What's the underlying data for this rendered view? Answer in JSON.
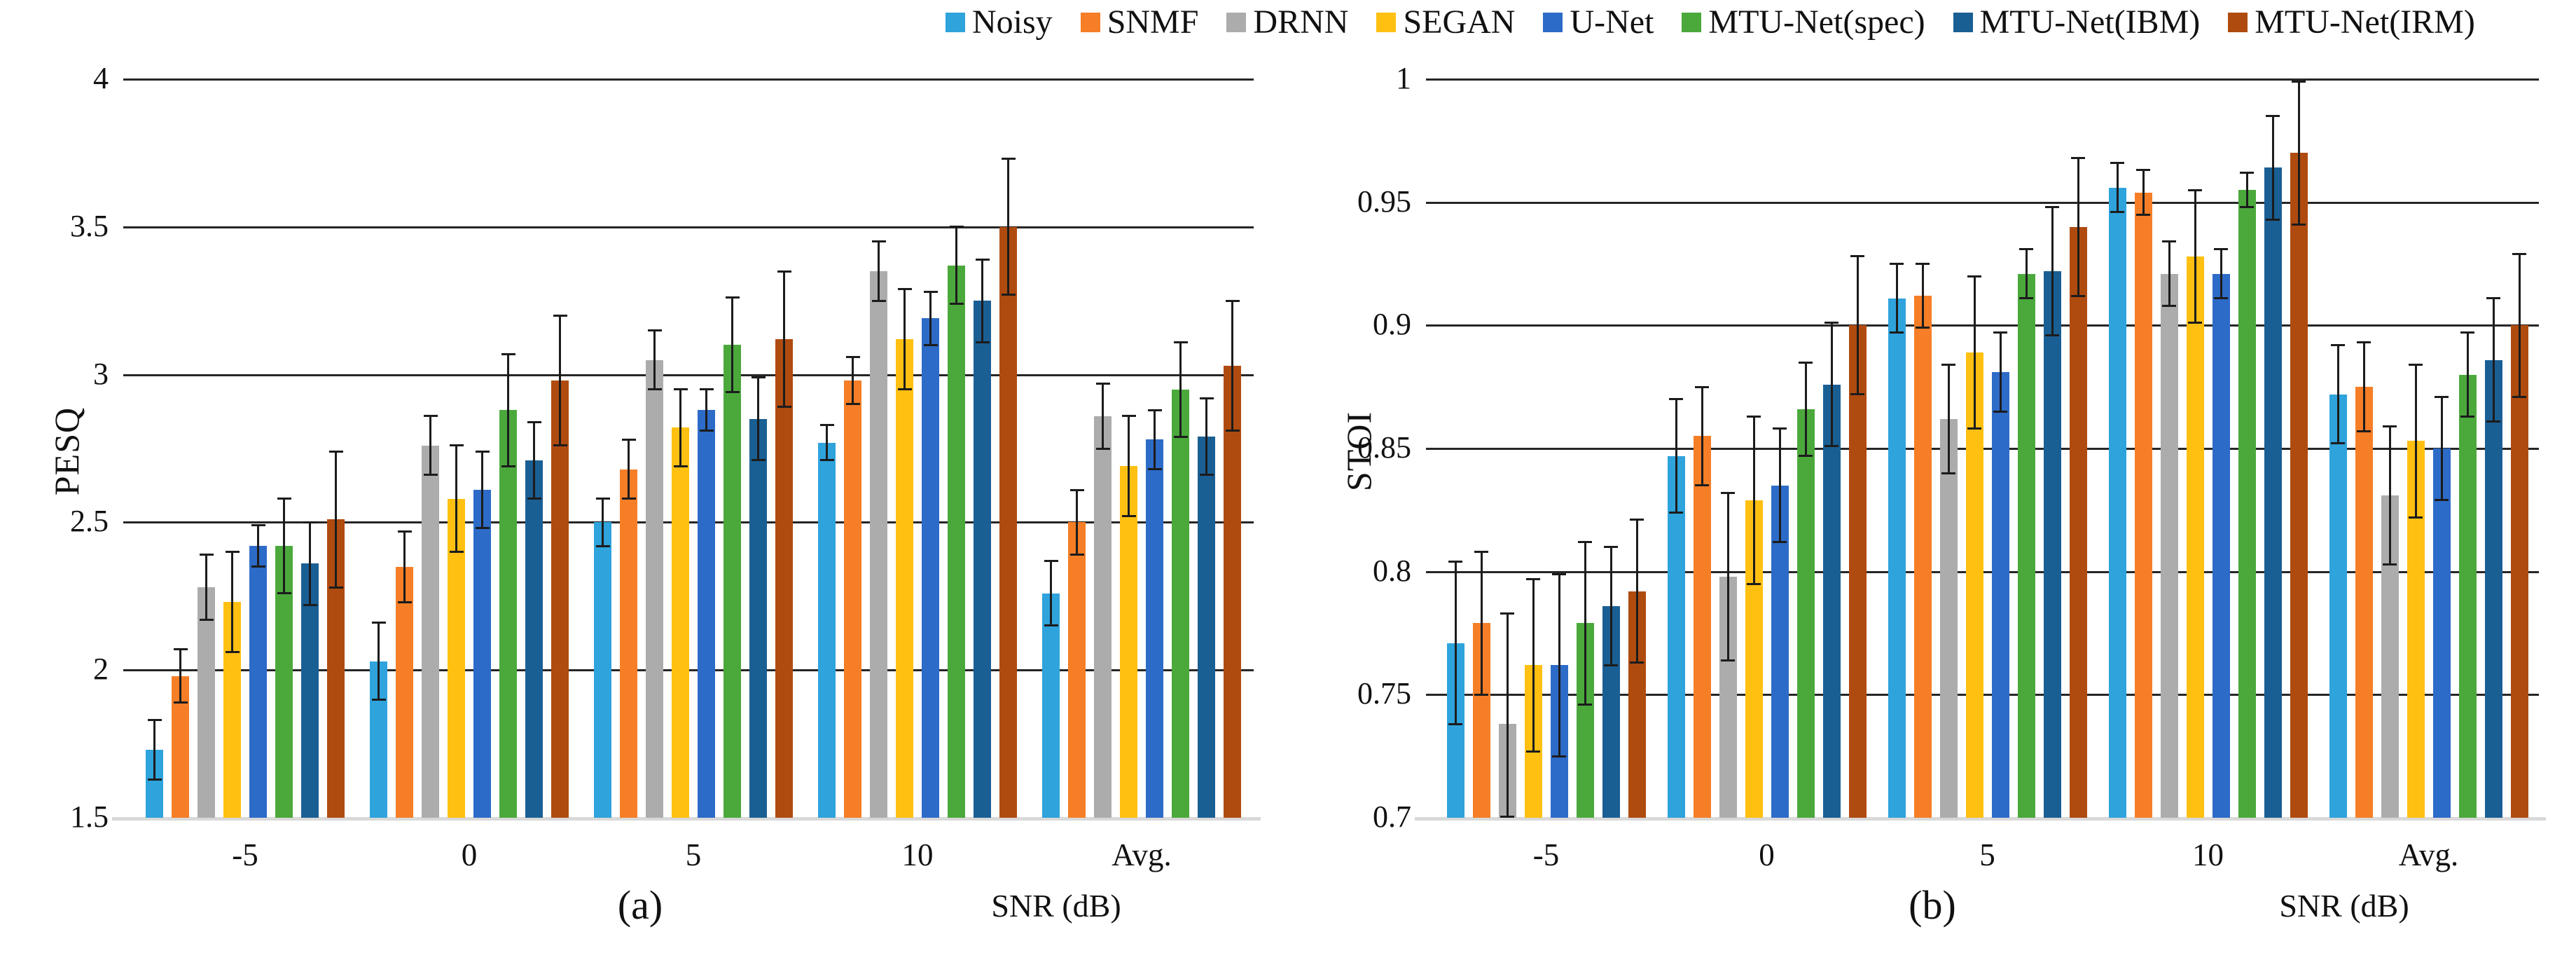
{
  "legend": {
    "items": [
      {
        "label": "Noisy",
        "color": "#2FA3DC"
      },
      {
        "label": "SNMF",
        "color": "#F57E27"
      },
      {
        "label": "DRNN",
        "color": "#ACACAC"
      },
      {
        "label": "SEGAN",
        "color": "#FFC012"
      },
      {
        "label": "U-Net",
        "color": "#2D6BC8"
      },
      {
        "label": "MTU-Net(spec)",
        "color": "#4BA93C"
      },
      {
        "label": "MTU-Net(IBM)",
        "color": "#1A5F94"
      },
      {
        "label": "MTU-Net(IRM)",
        "color": "#B04B10"
      }
    ]
  },
  "chart_data": [
    {
      "type": "bar",
      "panel": "a",
      "sublabel": "(a)",
      "ylabel": "PESQ",
      "xlabel": "SNR (dB)",
      "categories": [
        "-5",
        "0",
        "5",
        "10",
        "Avg."
      ],
      "ylim": [
        1.5,
        4
      ],
      "grid": true,
      "legend_position": "top",
      "yticks": [
        {
          "v": 4,
          "label": "4"
        },
        {
          "v": 3.5,
          "label": "3.5"
        },
        {
          "v": 3,
          "label": "3"
        },
        {
          "v": 2.5,
          "label": "2.5"
        },
        {
          "v": 2,
          "label": "2"
        },
        {
          "v": 1.5,
          "label": "1.5"
        }
      ],
      "series": [
        {
          "name": "Noisy",
          "color": "#2FA3DC",
          "values": [
            1.73,
            2.03,
            2.5,
            2.77,
            2.26
          ],
          "errors": [
            0.1,
            0.13,
            0.08,
            0.06,
            0.11
          ]
        },
        {
          "name": "SNMF",
          "color": "#F57E27",
          "values": [
            1.98,
            2.35,
            2.68,
            2.98,
            2.5
          ],
          "errors": [
            0.09,
            0.12,
            0.1,
            0.08,
            0.11
          ]
        },
        {
          "name": "DRNN",
          "color": "#ACACAC",
          "values": [
            2.28,
            2.76,
            3.05,
            3.35,
            2.86
          ],
          "errors": [
            0.11,
            0.1,
            0.1,
            0.1,
            0.11
          ]
        },
        {
          "name": "SEGAN",
          "color": "#FFC012",
          "values": [
            2.23,
            2.58,
            2.82,
            3.12,
            2.69
          ],
          "errors": [
            0.17,
            0.18,
            0.13,
            0.17,
            0.17
          ]
        },
        {
          "name": "U-Net",
          "color": "#2D6BC8",
          "values": [
            2.42,
            2.61,
            2.88,
            3.19,
            2.78
          ],
          "errors": [
            0.07,
            0.13,
            0.07,
            0.09,
            0.1
          ]
        },
        {
          "name": "MTU-Net(spec)",
          "color": "#4BA93C",
          "values": [
            2.42,
            2.88,
            3.1,
            3.37,
            2.95
          ],
          "errors": [
            0.16,
            0.19,
            0.16,
            0.13,
            0.16
          ]
        },
        {
          "name": "MTU-Net(IBM)",
          "color": "#1A5F94",
          "values": [
            2.36,
            2.71,
            2.85,
            3.25,
            2.79
          ],
          "errors": [
            0.14,
            0.13,
            0.14,
            0.14,
            0.13
          ]
        },
        {
          "name": "MTU-Net(IRM)",
          "color": "#B04B10",
          "values": [
            2.51,
            2.98,
            3.12,
            3.5,
            3.03
          ],
          "errors": [
            0.23,
            0.22,
            0.23,
            0.23,
            0.22
          ]
        }
      ]
    },
    {
      "type": "bar",
      "panel": "b",
      "sublabel": "(b)",
      "ylabel": "STOI",
      "xlabel": "SNR (dB)",
      "categories": [
        "-5",
        "0",
        "5",
        "10",
        "Avg."
      ],
      "ylim": [
        0.7,
        1
      ],
      "grid": true,
      "legend_position": "top",
      "yticks": [
        {
          "v": 1,
          "label": "1"
        },
        {
          "v": 0.95,
          "label": "0.95"
        },
        {
          "v": 0.9,
          "label": "0.9"
        },
        {
          "v": 0.85,
          "label": "0.85"
        },
        {
          "v": 0.8,
          "label": "0.8"
        },
        {
          "v": 0.75,
          "label": "0.75"
        },
        {
          "v": 0.7,
          "label": "0.7"
        }
      ],
      "series": [
        {
          "name": "Noisy",
          "color": "#2FA3DC",
          "values": [
            0.771,
            0.847,
            0.911,
            0.956,
            0.872
          ],
          "errors": [
            0.033,
            0.023,
            0.014,
            0.01,
            0.02
          ]
        },
        {
          "name": "SNMF",
          "color": "#F57E27",
          "values": [
            0.779,
            0.855,
            0.912,
            0.954,
            0.875
          ],
          "errors": [
            0.029,
            0.02,
            0.013,
            0.009,
            0.018
          ]
        },
        {
          "name": "DRNN",
          "color": "#ACACAC",
          "values": [
            0.738,
            0.798,
            0.862,
            0.921,
            0.831
          ],
          "errors": [
            0.045,
            0.034,
            0.022,
            0.013,
            0.028
          ]
        },
        {
          "name": "SEGAN",
          "color": "#FFC012",
          "values": [
            0.762,
            0.829,
            0.889,
            0.928,
            0.853
          ],
          "errors": [
            0.035,
            0.034,
            0.031,
            0.027,
            0.031
          ]
        },
        {
          "name": "U-Net",
          "color": "#2D6BC8",
          "values": [
            0.762,
            0.835,
            0.881,
            0.921,
            0.85
          ],
          "errors": [
            0.037,
            0.023,
            0.016,
            0.01,
            0.021
          ]
        },
        {
          "name": "MTU-Net(spec)",
          "color": "#4BA93C",
          "values": [
            0.779,
            0.866,
            0.921,
            0.955,
            0.88
          ],
          "errors": [
            0.033,
            0.019,
            0.01,
            0.007,
            0.017
          ]
        },
        {
          "name": "MTU-Net(IBM)",
          "color": "#1A5F94",
          "values": [
            0.786,
            0.876,
            0.922,
            0.964,
            0.886
          ],
          "errors": [
            0.024,
            0.025,
            0.026,
            0.021,
            0.025
          ]
        },
        {
          "name": "MTU-Net(IRM)",
          "color": "#B04B10",
          "values": [
            0.792,
            0.9,
            0.94,
            0.97,
            0.9
          ],
          "errors": [
            0.029,
            0.028,
            0.028,
            0.029,
            0.029
          ]
        }
      ]
    }
  ]
}
